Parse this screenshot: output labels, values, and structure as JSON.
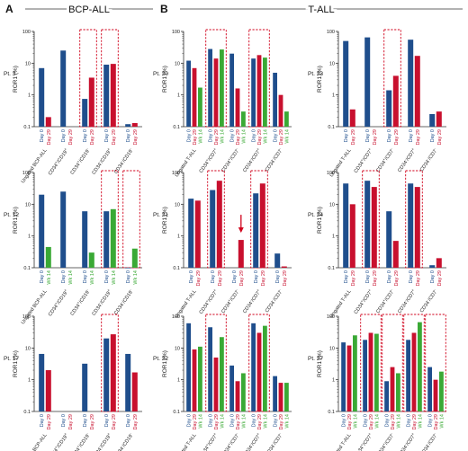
{
  "figure": {
    "panel_a_label": "A",
    "panel_b_label": "B",
    "panel_a_title": "BCP-ALL",
    "panel_b_title": "T-ALL",
    "ylabel": "ROR1 (%)",
    "ticks": [
      "0.1",
      "1",
      "10",
      "100"
    ],
    "timepoints": {
      "d0": "Day 0",
      "d29": "Day 29",
      "wk14": "Wk 14"
    },
    "colors": {
      "d0": "#1f4e8c",
      "d29": "#c8102e",
      "wk14": "#3aa935",
      "highlight": "#d0021b",
      "axis": "#333333"
    }
  },
  "chart_data": [
    {
      "type": "bar",
      "patient": "Pt. 3",
      "ylim": [
        0.1,
        100
      ],
      "log": true,
      "groups": [
        {
          "label": "Ungated BCP-ALL",
          "bars": [
            {
              "t": "d0",
              "value": 7
            },
            {
              "t": "d29",
              "value": 0.2
            }
          ]
        },
        {
          "label": "CD34+/CD19+",
          "bars": [
            {
              "t": "d0",
              "value": 25
            },
            {
              "t": "d29",
              "value": null
            }
          ]
        },
        {
          "label": "CD34+/CD19-",
          "highlight": true,
          "bars": [
            {
              "t": "d0",
              "value": 0.75
            },
            {
              "t": "d29",
              "value": 3.5
            }
          ]
        },
        {
          "label": "CD34-/CD19+",
          "highlight": true,
          "bars": [
            {
              "t": "d0",
              "value": 9
            },
            {
              "t": "d29",
              "value": 9.5
            }
          ]
        },
        {
          "label": "CD34-/CD19-",
          "bars": [
            {
              "t": "d0",
              "value": 0.12
            },
            {
              "t": "d29",
              "value": 0.13
            }
          ]
        }
      ]
    },
    {
      "type": "bar",
      "patient": "Pt. 12",
      "ylim": [
        0.1,
        100
      ],
      "log": true,
      "groups": [
        {
          "label": "Ungated BCP-ALL",
          "bars": [
            {
              "t": "d0",
              "value": 20
            },
            {
              "t": "wk14",
              "value": 0.45
            }
          ]
        },
        {
          "label": "CD34+/CD19+",
          "bars": [
            {
              "t": "d0",
              "value": 25
            },
            {
              "t": "wk14",
              "value": null
            }
          ]
        },
        {
          "label": "CD34+/CD19-",
          "bars": [
            {
              "t": "d0",
              "value": 6
            },
            {
              "t": "wk14",
              "value": 0.3
            }
          ]
        },
        {
          "label": "CD34-/CD19+",
          "highlight": true,
          "bars": [
            {
              "t": "d0",
              "value": 6
            },
            {
              "t": "wk14",
              "value": 7
            }
          ]
        },
        {
          "label": "CD34-/CD19-",
          "highlight": true,
          "bars": [
            {
              "t": "d0",
              "value": 0.1
            },
            {
              "t": "wk14",
              "value": 0.4
            }
          ]
        }
      ]
    },
    {
      "type": "bar",
      "patient": "Pt. 17",
      "ylim": [
        0.1,
        100
      ],
      "log": true,
      "groups": [
        {
          "label": "Ungated BCP-ALL",
          "bars": [
            {
              "t": "d0",
              "value": 6.5
            },
            {
              "t": "d29",
              "value": 2
            }
          ]
        },
        {
          "label": "CD34+/CD19+",
          "bars": [
            {
              "t": "d0",
              "value": null
            },
            {
              "t": "d29",
              "value": null
            }
          ]
        },
        {
          "label": "CD34+/CD19-",
          "bars": [
            {
              "t": "d0",
              "value": 3.2
            },
            {
              "t": "d29",
              "value": null
            }
          ]
        },
        {
          "label": "CD34-/CD19+",
          "highlight": true,
          "bars": [
            {
              "t": "d0",
              "value": 20
            },
            {
              "t": "d29",
              "value": 27
            }
          ]
        },
        {
          "label": "CD34-/CD19-",
          "bars": [
            {
              "t": "d0",
              "value": 6.5
            },
            {
              "t": "d29",
              "value": 1.7
            }
          ]
        }
      ]
    },
    {
      "type": "bar",
      "patient": "Pt. 20",
      "ylim": [
        0.1,
        100
      ],
      "log": true,
      "groups": [
        {
          "label": "Ungated T-ALL",
          "bars": [
            {
              "t": "d0",
              "value": 12
            },
            {
              "t": "d29",
              "value": 7
            },
            {
              "t": "wk14",
              "value": 1.7
            }
          ]
        },
        {
          "label": "CD34+/CD7+",
          "highlight": true,
          "bars": [
            {
              "t": "d0",
              "value": 28
            },
            {
              "t": "d29",
              "value": 14
            },
            {
              "t": "wk14",
              "value": 27
            }
          ]
        },
        {
          "label": "CD34+/CD7-",
          "bars": [
            {
              "t": "d0",
              "value": 20
            },
            {
              "t": "d29",
              "value": 1.6
            },
            {
              "t": "wk14",
              "value": 0.3
            }
          ]
        },
        {
          "label": "CD34-/CD7+",
          "highlight": true,
          "bars": [
            {
              "t": "d0",
              "value": 14
            },
            {
              "t": "d29",
              "value": 18
            },
            {
              "t": "wk14",
              "value": 15
            }
          ]
        },
        {
          "label": "CD34-/CD7-",
          "bars": [
            {
              "t": "d0",
              "value": 5
            },
            {
              "t": "d29",
              "value": 1
            },
            {
              "t": "wk14",
              "value": 0.3
            }
          ]
        }
      ]
    },
    {
      "type": "bar",
      "patient": "Pt. 23",
      "ylim": [
        0.1,
        100
      ],
      "log": true,
      "groups": [
        {
          "label": "Ungated T-ALL",
          "bars": [
            {
              "t": "d0",
              "value": 50
            },
            {
              "t": "d29",
              "value": 0.35
            }
          ]
        },
        {
          "label": "CD34+/CD7+",
          "bars": [
            {
              "t": "d0",
              "value": 65
            },
            {
              "t": "d29",
              "value": null
            }
          ]
        },
        {
          "label": "CD34+/CD7-",
          "highlight": true,
          "bars": [
            {
              "t": "d0",
              "value": 1.4
            },
            {
              "t": "d29",
              "value": 4
            }
          ]
        },
        {
          "label": "CD34-/CD7+",
          "bars": [
            {
              "t": "d0",
              "value": 55
            },
            {
              "t": "d29",
              "value": 17
            }
          ]
        },
        {
          "label": "CD34-/CD7-",
          "bars": [
            {
              "t": "d0",
              "value": 0.25
            },
            {
              "t": "d29",
              "value": 0.3
            }
          ]
        }
      ]
    },
    {
      "type": "bar",
      "patient": "Pt. 21",
      "ylim": [
        0.1,
        100
      ],
      "log": true,
      "arrow_group": "CD34+/CD7-",
      "groups": [
        {
          "label": "Ungated T-ALL",
          "bars": [
            {
              "t": "d0",
              "value": 15
            },
            {
              "t": "d29",
              "value": 13
            }
          ]
        },
        {
          "label": "CD34+/CD7+",
          "highlight": true,
          "bars": [
            {
              "t": "d0",
              "value": 28
            },
            {
              "t": "d29",
              "value": 55
            }
          ]
        },
        {
          "label": "CD34+/CD7-",
          "bars": [
            {
              "t": "d0",
              "value": null
            },
            {
              "t": "d29",
              "value": 0.75
            }
          ]
        },
        {
          "label": "CD34-/CD7+",
          "highlight": true,
          "bars": [
            {
              "t": "d0",
              "value": 22
            },
            {
              "t": "d29",
              "value": 45
            }
          ]
        },
        {
          "label": "CD34-/CD7-",
          "bars": [
            {
              "t": "d0",
              "value": 0.28
            },
            {
              "t": "d29",
              "value": 0.11
            }
          ]
        }
      ]
    },
    {
      "type": "bar",
      "patient": "Pt. 24",
      "ylim": [
        0.1,
        100
      ],
      "log": true,
      "groups": [
        {
          "label": "Ungated T-ALL",
          "bars": [
            {
              "t": "d0",
              "value": 45
            },
            {
              "t": "d29",
              "value": 10
            }
          ]
        },
        {
          "label": "CD34+/CD7+",
          "highlight": true,
          "bars": [
            {
              "t": "d0",
              "value": 55
            },
            {
              "t": "d29",
              "value": 35
            }
          ]
        },
        {
          "label": "CD34+/CD7-",
          "bars": [
            {
              "t": "d0",
              "value": 6
            },
            {
              "t": "d29",
              "value": 0.7
            }
          ]
        },
        {
          "label": "CD34-/CD7+",
          "highlight": true,
          "bars": [
            {
              "t": "d0",
              "value": 45
            },
            {
              "t": "d29",
              "value": 35
            }
          ]
        },
        {
          "label": "CD34-/CD7-",
          "bars": [
            {
              "t": "d0",
              "value": 0.12
            },
            {
              "t": "d29",
              "value": 0.2
            }
          ]
        }
      ]
    },
    {
      "type": "bar",
      "patient": "Pt. 22",
      "ylim": [
        0.1,
        100
      ],
      "log": true,
      "groups": [
        {
          "label": "Ungated T-ALL",
          "bars": [
            {
              "t": "d0",
              "value": 60
            },
            {
              "t": "d29",
              "value": 9
            },
            {
              "t": "wk14",
              "value": 11
            }
          ]
        },
        {
          "label": "CD34+/CD7+",
          "highlight": true,
          "bars": [
            {
              "t": "d0",
              "value": 45
            },
            {
              "t": "d29",
              "value": 5
            },
            {
              "t": "wk14",
              "value": 22
            }
          ]
        },
        {
          "label": "CD34+/CD7-",
          "bars": [
            {
              "t": "d0",
              "value": 2.8
            },
            {
              "t": "d29",
              "value": 0.9
            },
            {
              "t": "wk14",
              "value": 1.6
            }
          ]
        },
        {
          "label": "CD34-/CD7+",
          "highlight": true,
          "bars": [
            {
              "t": "d0",
              "value": 60
            },
            {
              "t": "d29",
              "value": 30
            },
            {
              "t": "wk14",
              "value": 50
            }
          ]
        },
        {
          "label": "CD34-/CD7-",
          "bars": [
            {
              "t": "d0",
              "value": 1.3
            },
            {
              "t": "d29",
              "value": 0.8
            },
            {
              "t": "wk14",
              "value": 0.8
            }
          ]
        }
      ]
    },
    {
      "type": "bar",
      "patient": "Pt. 27",
      "ylim": [
        0.1,
        100
      ],
      "log": true,
      "groups": [
        {
          "label": "Ungated T-ALL",
          "bars": [
            {
              "t": "d0",
              "value": 15
            },
            {
              "t": "d29",
              "value": 12
            },
            {
              "t": "wk14",
              "value": 25
            }
          ]
        },
        {
          "label": "CD34+/CD7+",
          "highlight": true,
          "bars": [
            {
              "t": "d0",
              "value": 18
            },
            {
              "t": "d29",
              "value": 30
            },
            {
              "t": "wk14",
              "value": 28
            }
          ]
        },
        {
          "label": "CD34+/CD7-",
          "highlight": true,
          "bars": [
            {
              "t": "d0",
              "value": 0.9
            },
            {
              "t": "d29",
              "value": 2.5
            },
            {
              "t": "wk14",
              "value": 1.6
            }
          ]
        },
        {
          "label": "CD34-/CD7+",
          "highlight": true,
          "bars": [
            {
              "t": "d0",
              "value": 18
            },
            {
              "t": "d29",
              "value": 30
            },
            {
              "t": "wk14",
              "value": 65
            }
          ]
        },
        {
          "label": "CD34-/CD7-",
          "highlight": true,
          "bars": [
            {
              "t": "d0",
              "value": 2.5
            },
            {
              "t": "d29",
              "value": 1
            },
            {
              "t": "wk14",
              "value": 1.8
            }
          ]
        }
      ]
    }
  ]
}
